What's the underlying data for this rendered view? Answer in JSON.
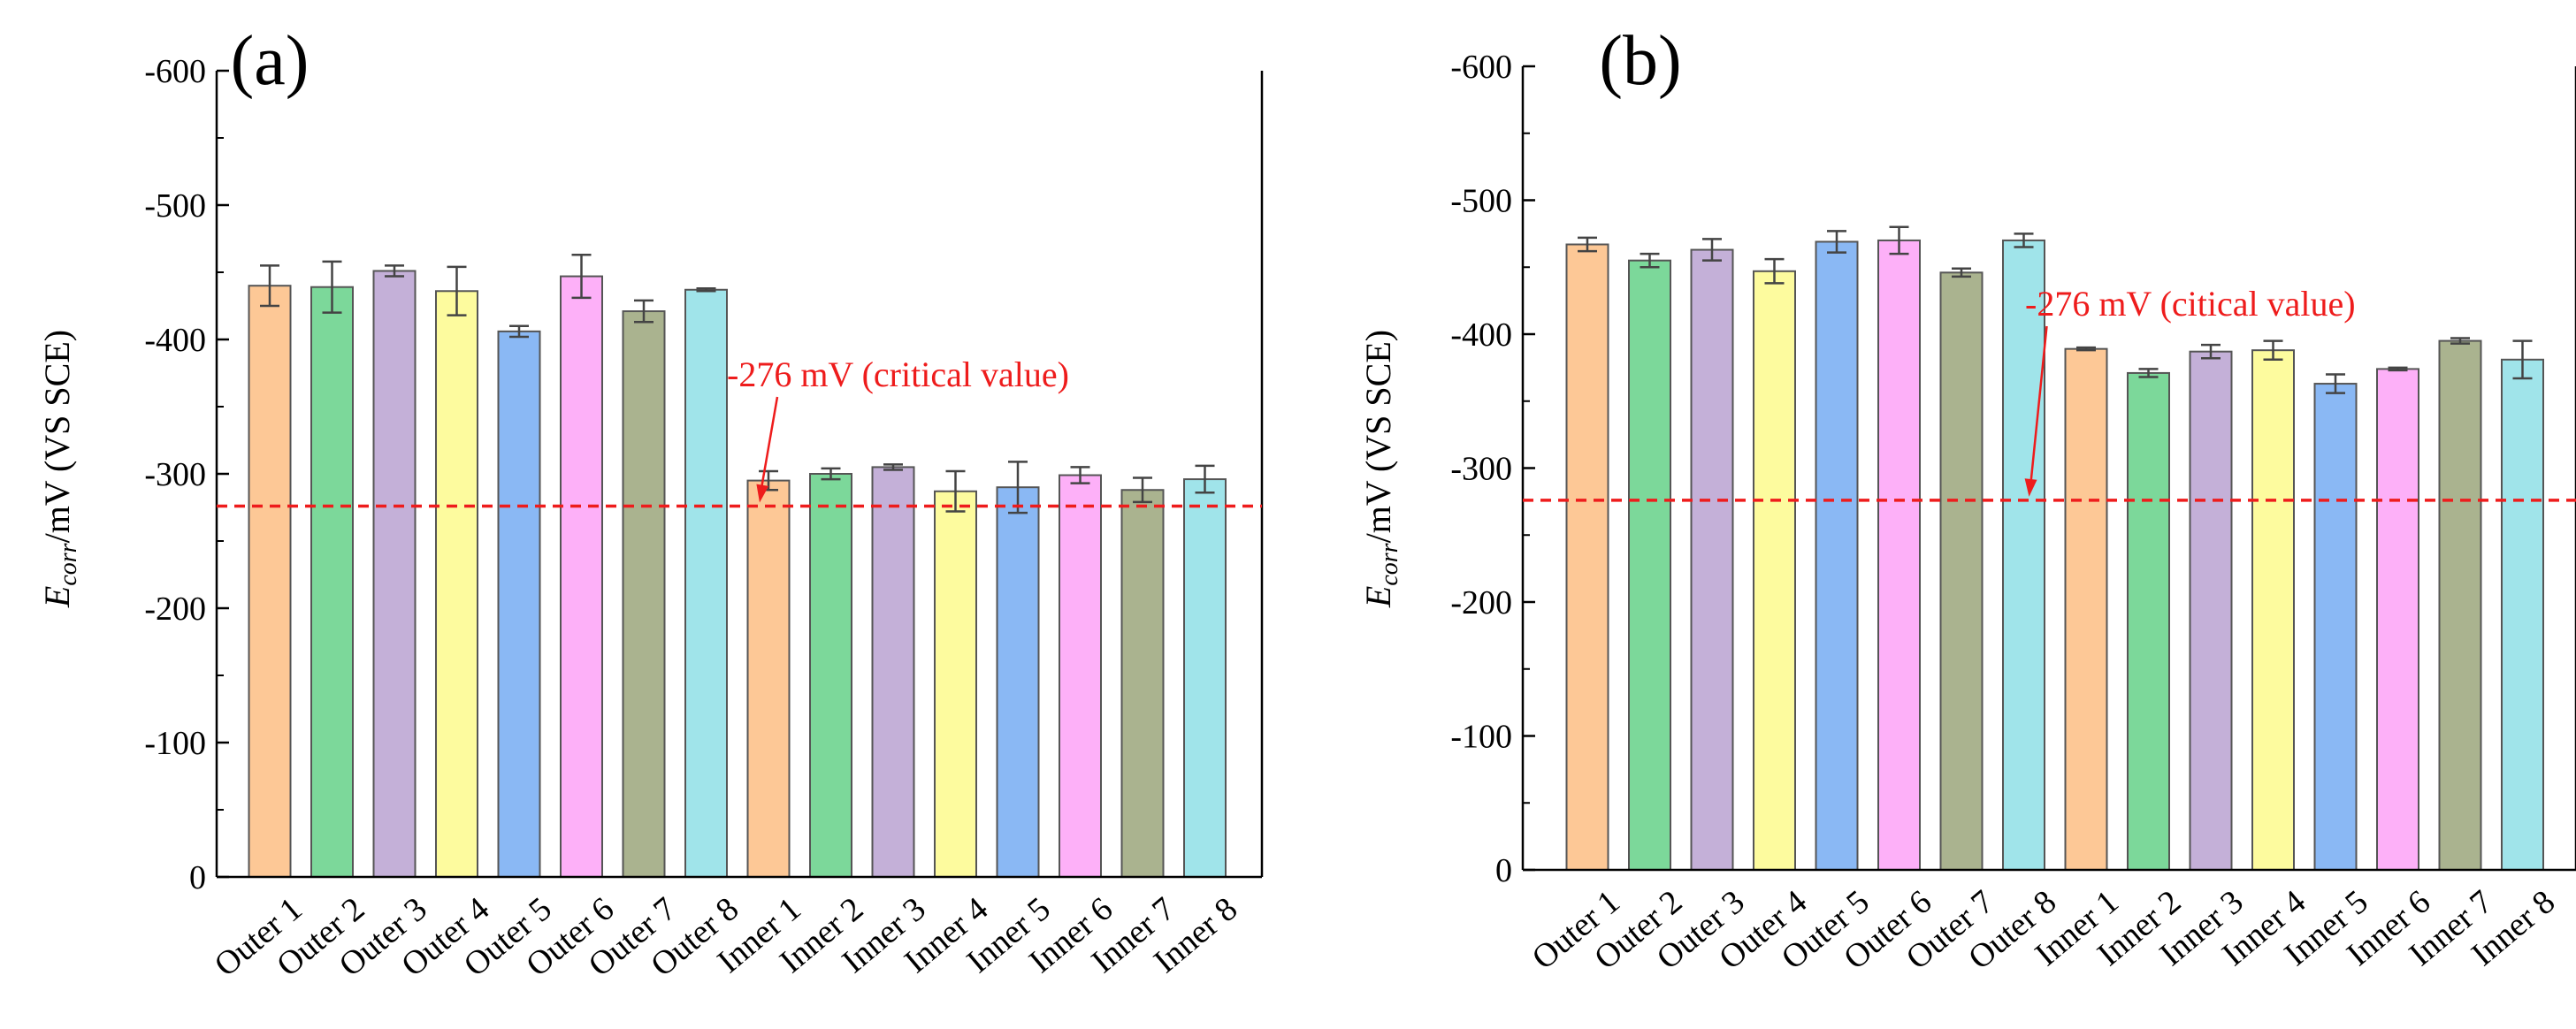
{
  "figure": {
    "critical_line_color": "#ee1c1c",
    "edge_color": "#555555",
    "error_color": "#444444"
  },
  "chart_data": [
    {
      "type": "bar",
      "panel_label": "(a)",
      "categories": [
        "Outer 1",
        "Outer 2",
        "Outer 3",
        "Outer 4",
        "Outer 5",
        "Outer 6",
        "Outer 7",
        "Outer 8",
        "Inner 1",
        "Inner 2",
        "Inner 3",
        "Inner 4",
        "Inner 5",
        "Inner 6",
        "Inner 7",
        "Inner 8"
      ],
      "values": [
        -440,
        -439,
        -451,
        -436,
        -406,
        -447,
        -421,
        -437,
        -295,
        -300,
        -305,
        -287,
        -290,
        -299,
        -288,
        -296
      ],
      "errors": [
        15,
        19,
        4,
        18,
        4,
        16,
        8,
        1,
        7,
        4,
        2,
        15,
        19,
        6,
        9,
        10
      ],
      "colors": [
        "#fdc896",
        "#7cd89a",
        "#c4b0d8",
        "#fdfb9e",
        "#8ab8f4",
        "#fdb0f8",
        "#aab38f",
        "#a0e4ea",
        "#fdc896",
        "#7cd89a",
        "#c4b0d8",
        "#fdfb9e",
        "#8ab8f4",
        "#fdb0f8",
        "#aab38f",
        "#a0e4ea"
      ],
      "ylabel_main": "E",
      "ylabel_sub": "corr",
      "ylabel_rest": "/mV (VS SCE)",
      "ylim": [
        0,
        -600
      ],
      "yticks": [
        0,
        -100,
        -200,
        -300,
        -400,
        -500,
        -600
      ],
      "ytick_labels": [
        "0",
        "-100",
        "-200",
        "-300",
        "-400",
        "-500",
        "-600"
      ],
      "critical_value": -276,
      "annotation": "-276 mV (critical value)",
      "annotation_arrow_target_category": "Inner 1"
    },
    {
      "type": "bar",
      "panel_label": "(b)",
      "categories": [
        "Outer 1",
        "Outer 2",
        "Outer 3",
        "Outer 4",
        "Outer 5",
        "Outer 6",
        "Outer 7",
        "Outer 8",
        "Inner 1",
        "Inner 2",
        "Inner 3",
        "Inner 4",
        "Inner 5",
        "Inner 6",
        "Inner 7",
        "Inner 8"
      ],
      "values": [
        -467,
        -455,
        -463,
        -447,
        -469,
        -470,
        -446,
        -470,
        -389,
        -371,
        -387,
        -388,
        -363,
        -374,
        -395,
        -381
      ],
      "errors": [
        5,
        5,
        8,
        9,
        8,
        10,
        3,
        5,
        1,
        3,
        5,
        7,
        7,
        1,
        2,
        14
      ],
      "colors": [
        "#fdc896",
        "#7cd89a",
        "#c4b0d8",
        "#fdfb9e",
        "#8ab8f4",
        "#fdb0f8",
        "#aab38f",
        "#a0e4ea",
        "#fdc896",
        "#7cd89a",
        "#c4b0d8",
        "#fdfb9e",
        "#8ab8f4",
        "#fdb0f8",
        "#aab38f",
        "#a0e4ea"
      ],
      "ylabel_main": "E",
      "ylabel_sub": "corr",
      "ylabel_rest": "/mV (VS SCE)",
      "ylim": [
        0,
        -600
      ],
      "yticks": [
        0,
        -100,
        -200,
        -300,
        -400,
        -500,
        -600
      ],
      "ytick_labels": [
        "0",
        "-100",
        "-200",
        "-300",
        "-400",
        "-500",
        "-600"
      ],
      "critical_value": -276,
      "annotation": "-276 mV (citical value)",
      "annotation_arrow_target_category": "Outer 8"
    }
  ]
}
